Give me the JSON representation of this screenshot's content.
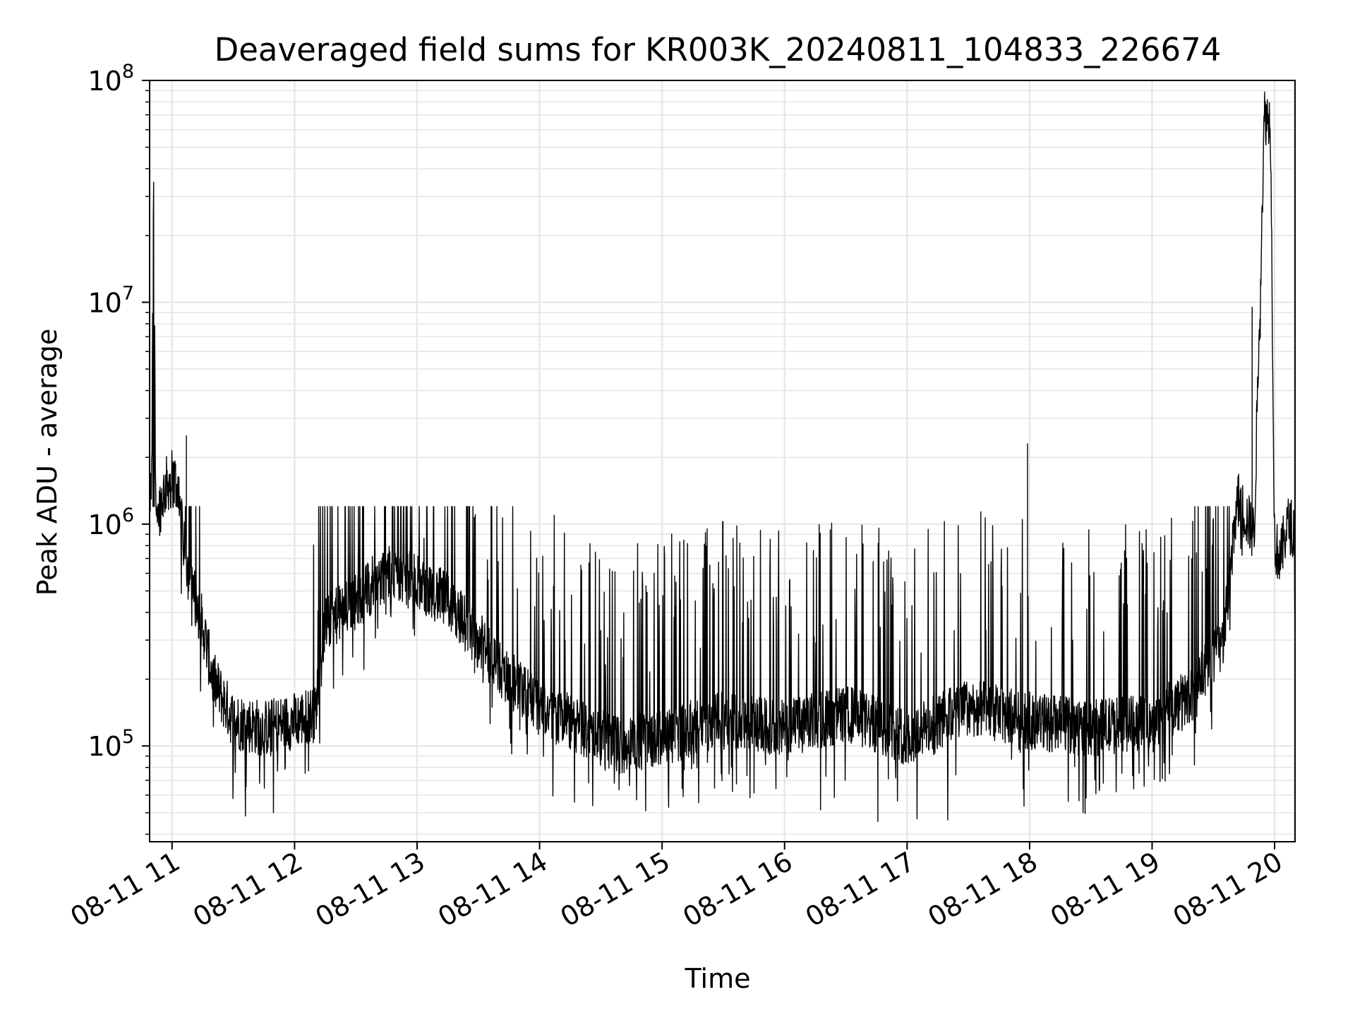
{
  "chart_data": {
    "type": "line",
    "title": "Deaveraged field sums for KR003K_20240811_104833_226674",
    "xlabel": "Time",
    "ylabel": "Peak ADU - average",
    "x_ticks": [
      "08-11 11",
      "08-11 12",
      "08-11 13",
      "08-11 14",
      "08-11 15",
      "08-11 16",
      "08-11 17",
      "08-11 18",
      "08-11 19",
      "08-11 20"
    ],
    "y_ticks": [
      {
        "base": "10",
        "exp": "5",
        "value": 100000
      },
      {
        "base": "10",
        "exp": "6",
        "value": 1000000
      },
      {
        "base": "10",
        "exp": "7",
        "value": 10000000
      },
      {
        "base": "10",
        "exp": "8",
        "value": 100000000
      }
    ],
    "xlim": [
      "2024-08-11 10:49",
      "2024-08-11 20:10"
    ],
    "ylim": [
      37000,
      100000000
    ],
    "yscale": "log",
    "grid": true,
    "legend": "none",
    "line_color": "#000000",
    "grid_color": "#e6e6e6",
    "series": [
      {
        "x": [
          "2024-08-11 10:48",
          "2024-08-11 10:50",
          "2024-08-11 10:51",
          "2024-08-11 10:52",
          "2024-08-11 10:53",
          "2024-08-11 10:55",
          "2024-08-11 10:57",
          "2024-08-11 11:00",
          "2024-08-11 11:03",
          "2024-08-11 11:05",
          "2024-08-11 11:08",
          "2024-08-11 11:10",
          "2024-08-11 11:15",
          "2024-08-11 11:20",
          "2024-08-11 11:30",
          "2024-08-11 11:45",
          "2024-08-11 12:00",
          "2024-08-11 12:10",
          "2024-08-11 12:15",
          "2024-08-11 12:30",
          "2024-08-11 12:45",
          "2024-08-11 13:00",
          "2024-08-11 13:15",
          "2024-08-11 13:30",
          "2024-08-11 13:45",
          "2024-08-11 14:00",
          "2024-08-11 14:20",
          "2024-08-11 14:40",
          "2024-08-11 15:00",
          "2024-08-11 15:30",
          "2024-08-11 16:00",
          "2024-08-11 16:30",
          "2024-08-11 17:00",
          "2024-08-11 17:30",
          "2024-08-11 18:00",
          "2024-08-11 18:30",
          "2024-08-11 19:00",
          "2024-08-11 19:20",
          "2024-08-11 19:35",
          "2024-08-11 19:42",
          "2024-08-11 19:50",
          "2024-08-11 19:55",
          "2024-08-11 19:58",
          "2024-08-11 20:00",
          "2024-08-11 20:03",
          "2024-08-11 20:06",
          "2024-08-11 20:10"
        ],
        "y": [
          1000000,
          1500000,
          40000000,
          1400000,
          1100000,
          1300000,
          1500000,
          1600000,
          1500000,
          900000,
          600000,
          500000,
          350000,
          200000,
          130000,
          120000,
          130000,
          140000,
          350000,
          450000,
          600000,
          550000,
          450000,
          300000,
          200000,
          150000,
          120000,
          100000,
          110000,
          130000,
          120000,
          140000,
          110000,
          150000,
          130000,
          120000,
          130000,
          170000,
          300000,
          1300000,
          900000,
          70000000,
          65000000,
          800000,
          700000,
          1000000,
          950000
        ]
      }
    ],
    "spikes": [
      {
        "x": "2024-08-11 17:59",
        "y": 2300000
      },
      {
        "x": "2024-08-11 19:49",
        "y": 9500000
      },
      {
        "x": "2024-08-11 11:07",
        "y": 2500000
      }
    ]
  }
}
